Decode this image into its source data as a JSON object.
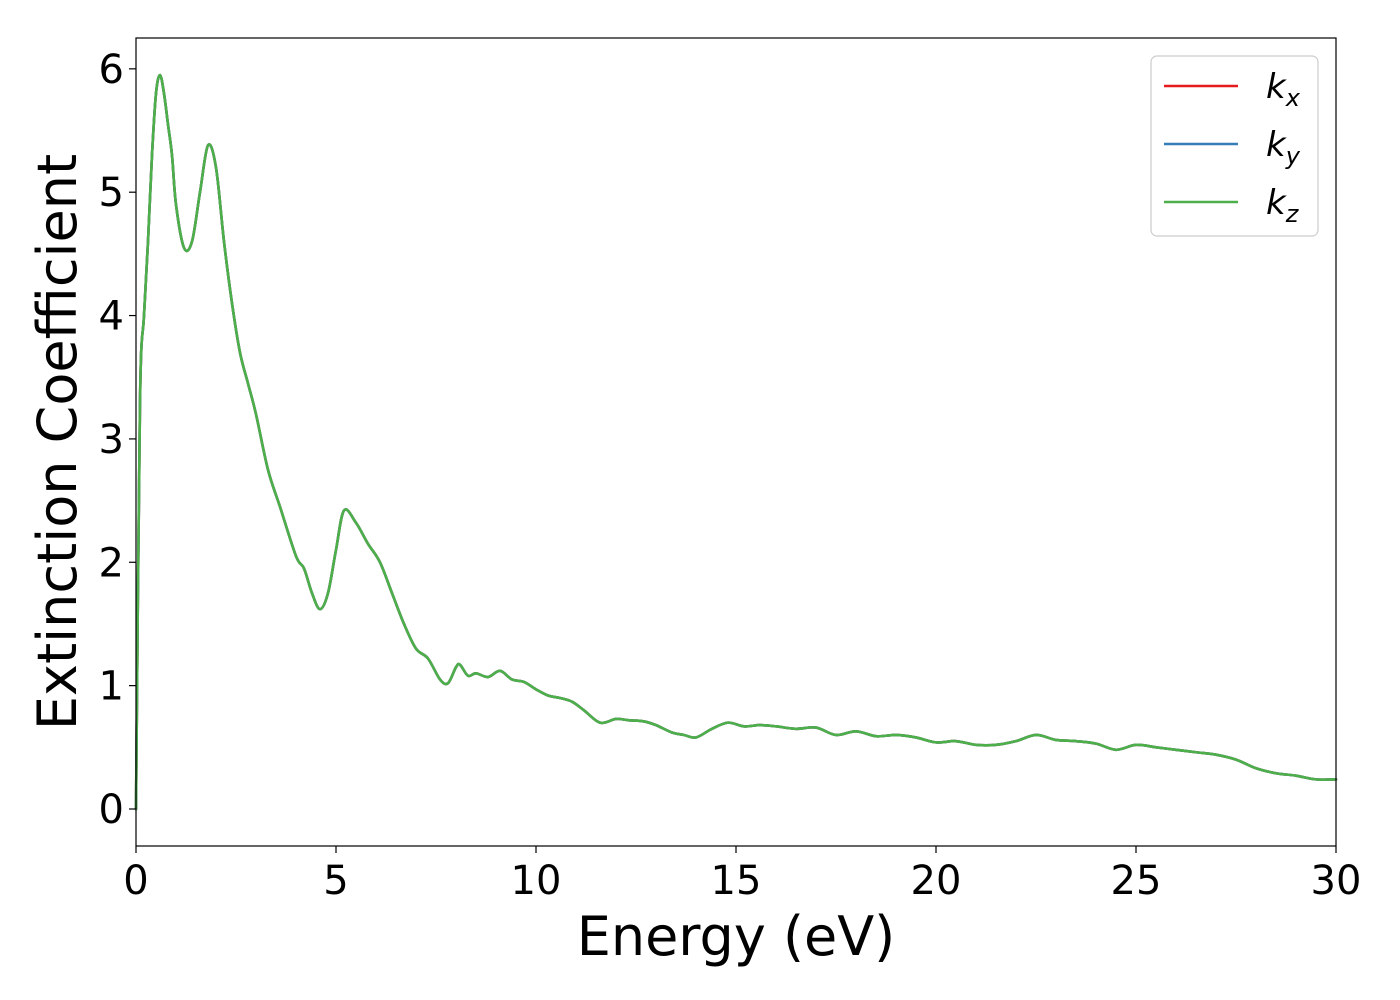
{
  "chart_data": {
    "type": "line",
    "title": "",
    "xlabel": "Energy (eV)",
    "ylabel": "Extinction Coefficient",
    "xlim": [
      0,
      30
    ],
    "ylim": [
      -0.3,
      6.25
    ],
    "xticks": [
      0,
      5,
      10,
      15,
      20,
      25,
      30
    ],
    "yticks": [
      0,
      1,
      2,
      3,
      4,
      5,
      6
    ],
    "grid": false,
    "legend_position": "top-right",
    "x": [
      0.0,
      0.1,
      0.2,
      0.3,
      0.4,
      0.5,
      0.6,
      0.7,
      0.8,
      0.9,
      1.0,
      1.2,
      1.4,
      1.6,
      1.8,
      2.0,
      2.2,
      2.4,
      2.6,
      2.8,
      3.0,
      3.3,
      3.6,
      4.0,
      4.2,
      4.4,
      4.6,
      4.8,
      5.0,
      5.2,
      5.5,
      5.8,
      6.1,
      6.4,
      6.7,
      7.0,
      7.3,
      7.6,
      7.8,
      8.0,
      8.1,
      8.3,
      8.5,
      8.8,
      9.1,
      9.4,
      9.7,
      10.0,
      10.3,
      10.6,
      10.9,
      11.2,
      11.6,
      12.0,
      12.3,
      12.7,
      13.0,
      13.4,
      13.7,
      14.0,
      14.4,
      14.8,
      15.2,
      15.6,
      16.0,
      16.5,
      17.0,
      17.5,
      18.0,
      18.5,
      19.0,
      19.5,
      20.0,
      20.5,
      21.0,
      21.5,
      22.0,
      22.5,
      23.0,
      23.5,
      24.0,
      24.5,
      25.0,
      25.5,
      26.0,
      26.5,
      27.0,
      27.5,
      28.0,
      28.5,
      29.0,
      29.5,
      30.0
    ],
    "series": [
      {
        "name": "k_x",
        "color": "#e41a1c",
        "values": [
          0.0,
          3.3,
          4.0,
          4.6,
          5.3,
          5.8,
          5.95,
          5.8,
          5.55,
          5.3,
          4.9,
          4.55,
          4.6,
          5.0,
          5.38,
          5.2,
          4.6,
          4.1,
          3.7,
          3.45,
          3.2,
          2.75,
          2.45,
          2.05,
          1.95,
          1.75,
          1.62,
          1.75,
          2.1,
          2.42,
          2.32,
          2.15,
          2.0,
          1.75,
          1.5,
          1.3,
          1.22,
          1.05,
          1.02,
          1.15,
          1.17,
          1.08,
          1.1,
          1.07,
          1.12,
          1.05,
          1.03,
          0.97,
          0.92,
          0.9,
          0.87,
          0.8,
          0.7,
          0.73,
          0.72,
          0.71,
          0.68,
          0.62,
          0.6,
          0.58,
          0.65,
          0.7,
          0.67,
          0.68,
          0.67,
          0.65,
          0.66,
          0.6,
          0.63,
          0.59,
          0.6,
          0.58,
          0.54,
          0.55,
          0.52,
          0.52,
          0.55,
          0.6,
          0.56,
          0.55,
          0.53,
          0.48,
          0.52,
          0.5,
          0.48,
          0.46,
          0.44,
          0.4,
          0.33,
          0.29,
          0.27,
          0.24,
          0.24
        ]
      },
      {
        "name": "k_y",
        "color": "#377eb8",
        "values": [
          0.0,
          3.3,
          4.0,
          4.6,
          5.3,
          5.8,
          5.95,
          5.8,
          5.55,
          5.3,
          4.9,
          4.55,
          4.6,
          5.0,
          5.38,
          5.2,
          4.6,
          4.1,
          3.7,
          3.45,
          3.2,
          2.75,
          2.45,
          2.05,
          1.95,
          1.75,
          1.62,
          1.75,
          2.1,
          2.42,
          2.32,
          2.15,
          2.0,
          1.75,
          1.5,
          1.3,
          1.22,
          1.05,
          1.02,
          1.15,
          1.17,
          1.08,
          1.1,
          1.07,
          1.12,
          1.05,
          1.03,
          0.97,
          0.92,
          0.9,
          0.87,
          0.8,
          0.7,
          0.73,
          0.72,
          0.71,
          0.68,
          0.62,
          0.6,
          0.58,
          0.65,
          0.7,
          0.67,
          0.68,
          0.67,
          0.65,
          0.66,
          0.6,
          0.63,
          0.59,
          0.6,
          0.58,
          0.54,
          0.55,
          0.52,
          0.52,
          0.55,
          0.6,
          0.56,
          0.55,
          0.53,
          0.48,
          0.52,
          0.5,
          0.48,
          0.46,
          0.44,
          0.4,
          0.33,
          0.29,
          0.27,
          0.24,
          0.24
        ]
      },
      {
        "name": "k_z",
        "color": "#4daf4a",
        "values": [
          0.0,
          3.3,
          4.0,
          4.6,
          5.3,
          5.8,
          5.95,
          5.8,
          5.55,
          5.3,
          4.9,
          4.55,
          4.6,
          5.0,
          5.38,
          5.2,
          4.6,
          4.1,
          3.7,
          3.45,
          3.2,
          2.75,
          2.45,
          2.05,
          1.95,
          1.75,
          1.62,
          1.75,
          2.1,
          2.42,
          2.32,
          2.15,
          2.0,
          1.75,
          1.5,
          1.3,
          1.22,
          1.05,
          1.02,
          1.15,
          1.17,
          1.08,
          1.1,
          1.07,
          1.12,
          1.05,
          1.03,
          0.97,
          0.92,
          0.9,
          0.87,
          0.8,
          0.7,
          0.73,
          0.72,
          0.71,
          0.68,
          0.62,
          0.6,
          0.58,
          0.65,
          0.7,
          0.67,
          0.68,
          0.67,
          0.65,
          0.66,
          0.6,
          0.63,
          0.59,
          0.6,
          0.58,
          0.54,
          0.55,
          0.52,
          0.52,
          0.55,
          0.6,
          0.56,
          0.55,
          0.53,
          0.48,
          0.52,
          0.5,
          0.48,
          0.46,
          0.44,
          0.4,
          0.33,
          0.29,
          0.27,
          0.24,
          0.24
        ]
      }
    ],
    "legend": [
      {
        "base": "k",
        "sub": "x",
        "color": "#e41a1c"
      },
      {
        "base": "k",
        "sub": "y",
        "color": "#377eb8"
      },
      {
        "base": "k",
        "sub": "z",
        "color": "#4daf4a"
      }
    ]
  }
}
